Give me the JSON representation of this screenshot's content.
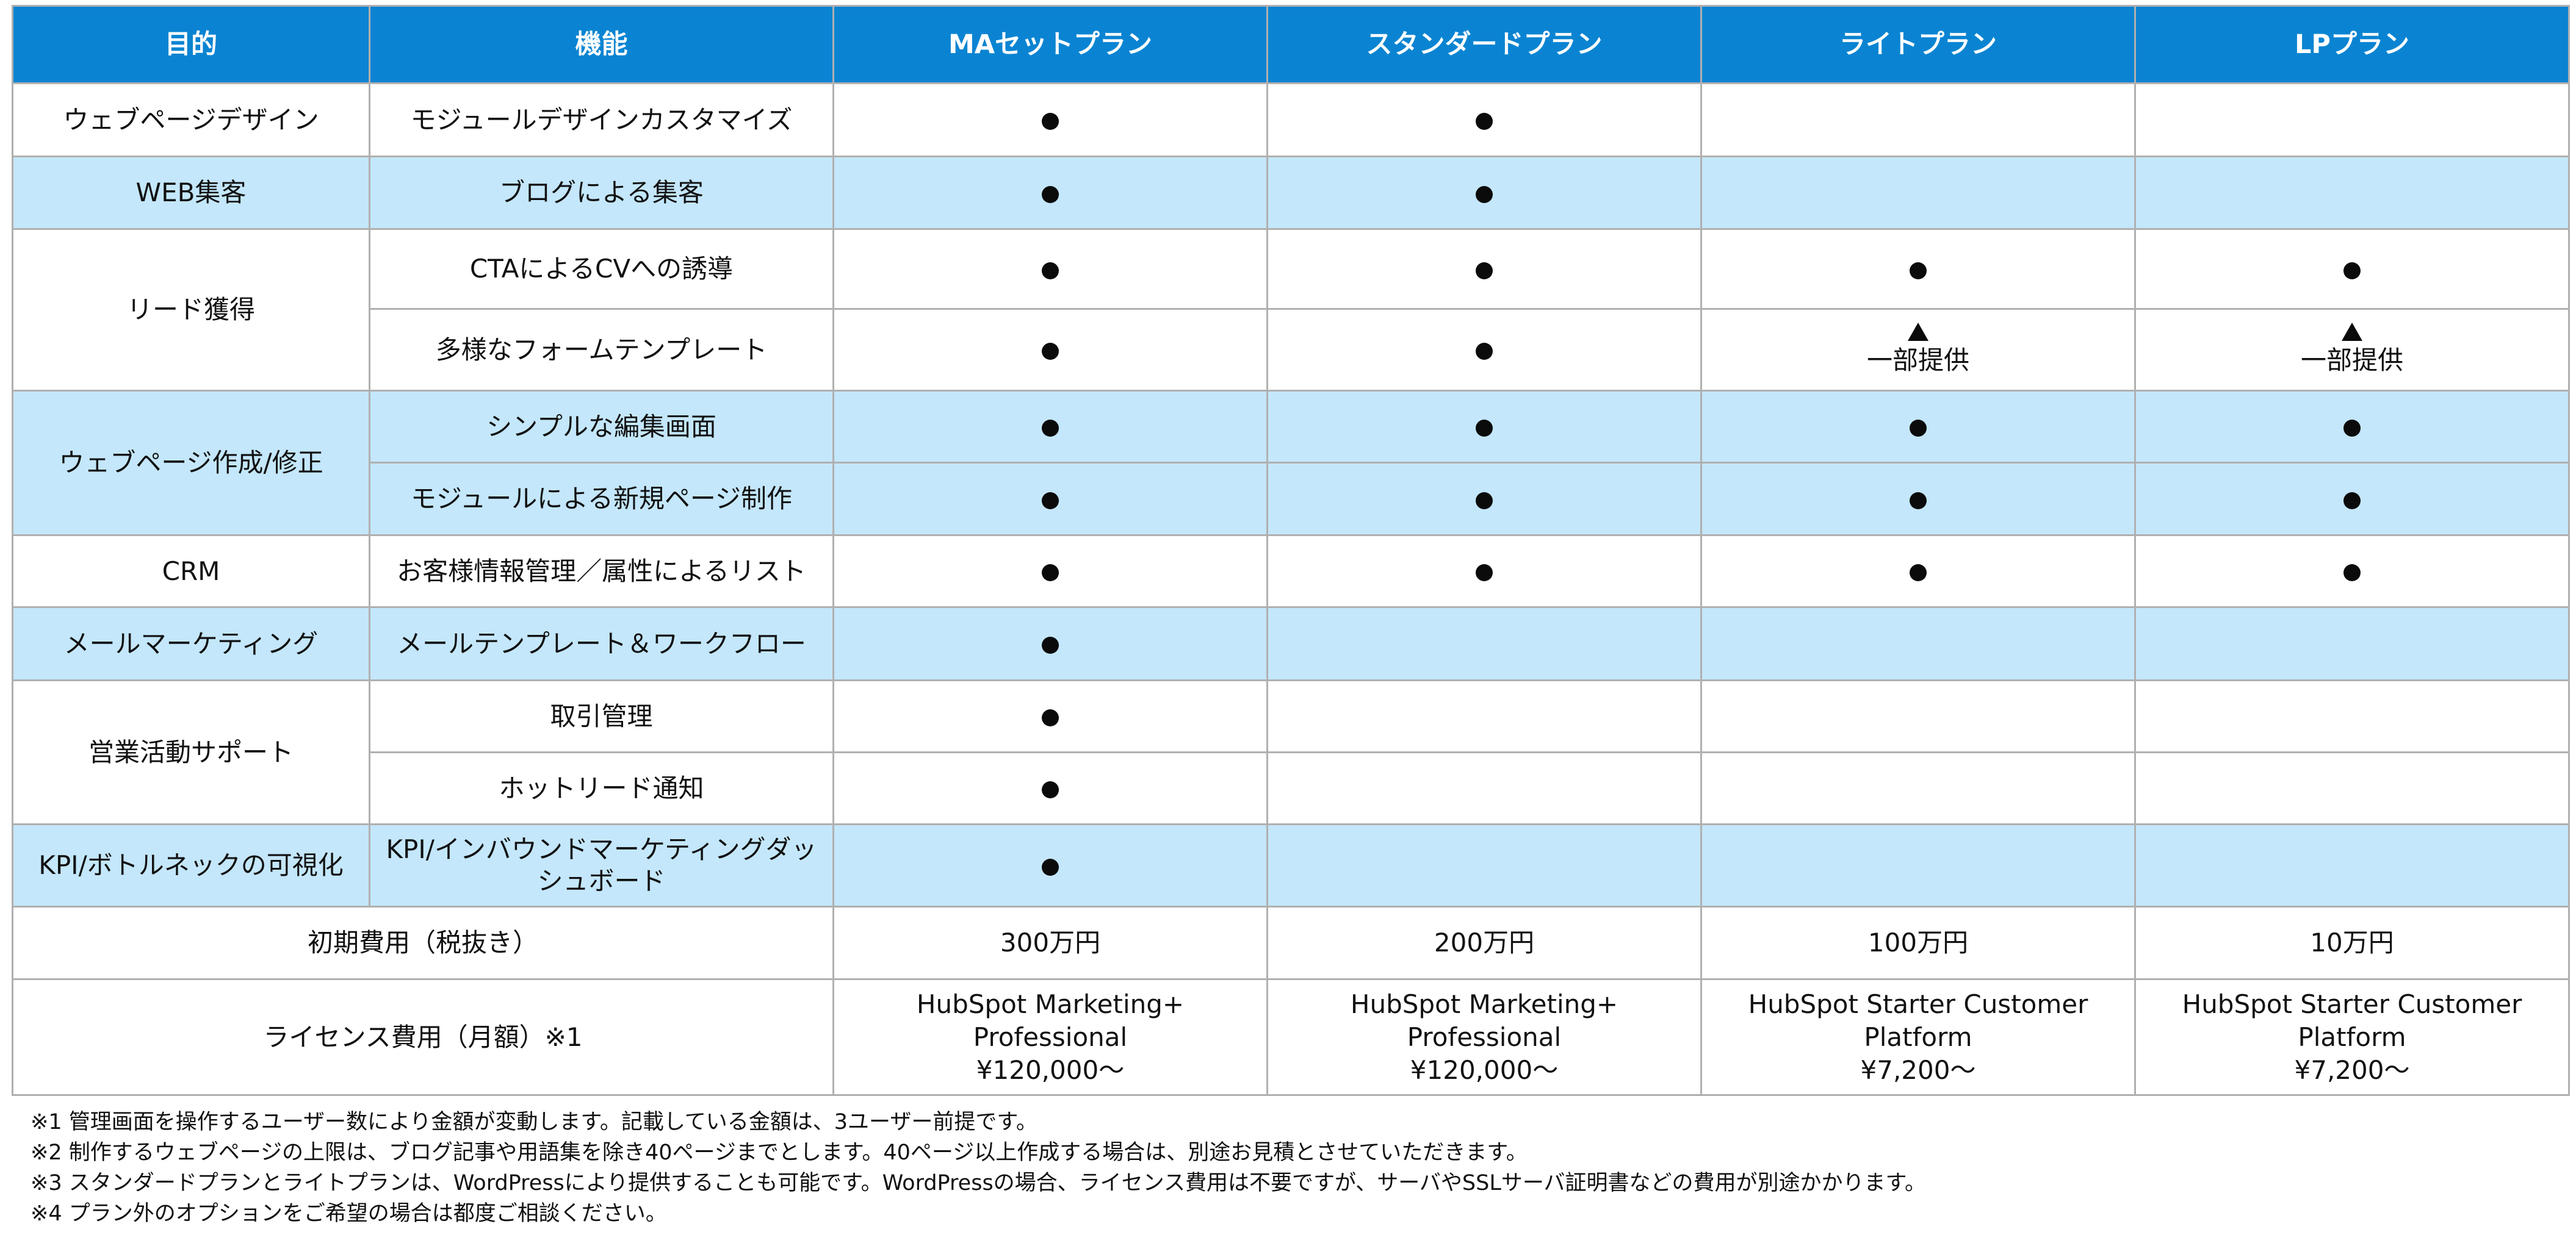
{
  "header": [
    "目的",
    "機能",
    "MAセットプラン",
    "スタンダードプラン",
    "ライトプラン",
    "LPプラン"
  ],
  "rows": [
    {
      "purpose": "ウェブページデザイン",
      "feature": "モジュールデザインカスタマイズ",
      "marks": [
        "●",
        "●",
        "",
        ""
      ]
    },
    {
      "purpose": "WEB集客",
      "feature": "ブログによる集客",
      "marks": [
        "●",
        "●",
        "",
        ""
      ]
    },
    {
      "purpose": "リード獲得",
      "feature": "CTAによるCVへの誘導",
      "marks": [
        "●",
        "●",
        "●",
        "●"
      ]
    },
    {
      "purpose": "",
      "feature": "多様なフォームテンプレート",
      "marks": [
        "●",
        "●",
        "▲\n一部提供",
        "▲\n一部提供"
      ]
    },
    {
      "purpose": "ウェブページ作成/修正",
      "feature": "シンプルな編集画面",
      "marks": [
        "●",
        "●",
        "●",
        "●"
      ]
    },
    {
      "purpose": "",
      "feature": "モジュールによる新規ページ制作",
      "marks": [
        "●",
        "●",
        "●",
        "●"
      ]
    },
    {
      "purpose": "CRM",
      "feature": "お客様情報管理／属性によるリスト",
      "marks": [
        "●",
        "●",
        "●",
        "●"
      ]
    },
    {
      "purpose": "メールマーケティング",
      "feature": "メールテンプレート＆ワークフロー",
      "marks": [
        "●",
        "",
        "",
        ""
      ]
    },
    {
      "purpose": "営業活動サポート",
      "feature": "取引管理",
      "marks": [
        "●",
        "",
        "",
        ""
      ]
    },
    {
      "purpose": "",
      "feature": "ホットリード通知",
      "marks": [
        "●",
        "",
        "",
        ""
      ]
    },
    {
      "purpose": "KPI/ボトルネックの可視化",
      "feature": "KPI/インバウンドマーケティングダッシュボード",
      "marks": [
        "●",
        "",
        "",
        ""
      ]
    }
  ],
  "partial_label": "一部提供",
  "pricing": {
    "initial_label": "初期費用（税抜き）",
    "initial_values": [
      "300万円",
      "200万円",
      "100万円",
      "10万円"
    ],
    "license_label": "ライセンス費用（月額）※1",
    "license_values": [
      {
        "product": "HubSpot Marketing+",
        "edition": "Professional",
        "price": "¥120,000～"
      },
      {
        "product": "HubSpot Marketing+",
        "edition": "Professional",
        "price": "¥120,000～"
      },
      {
        "product": "HubSpot Starter Customer",
        "edition": "Platform",
        "price": "¥7,200～"
      },
      {
        "product": "HubSpot Starter Customer",
        "edition": "Platform",
        "price": "¥7,200～"
      }
    ]
  },
  "notes": [
    "※1 管理画面を操作するユーザー数により金額が変動します。記載している金額は、3ユーザー前提です。",
    "※2 制作するウェブページの上限は、ブログ記事や用語集を除き40ページまでとします。40ページ以上作成する場合は、別途お見積とさせていただきます。",
    "※3 スタンダードプランとライトプランは、WordPressにより提供することも可能です。WordPressの場合、ライセンス費用は不要ですが、サーバやSSLサーバ証明書などの費用が別途かかります。",
    "※4 プラン外のオプションをご希望の場合は都度ご相談ください。"
  ],
  "colors": {
    "header_bg": "#0a84d2",
    "header_text": "#ffffff",
    "alt_row_bg": "#c4e7fb",
    "border": "#b0b0b0"
  }
}
